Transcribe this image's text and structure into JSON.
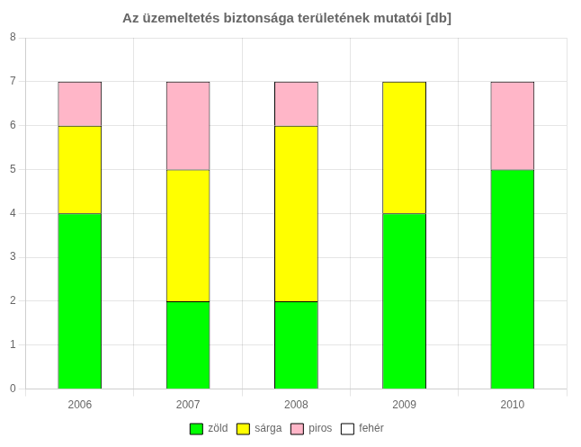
{
  "chart_data": {
    "type": "bar",
    "title": "Az üzemeltetés biztonsága területének mutatói [db]",
    "categories": [
      "2006",
      "2007",
      "2008",
      "2009",
      "2010"
    ],
    "series": [
      {
        "name": "zöld",
        "color": "#00ff00",
        "values": [
          4,
          2,
          2,
          4,
          5
        ]
      },
      {
        "name": "sárga",
        "color": "#ffff00",
        "values": [
          2,
          3,
          4,
          3,
          0
        ]
      },
      {
        "name": "piros",
        "color": "#ffb6c8",
        "values": [
          1,
          2,
          1,
          0,
          2
        ]
      },
      {
        "name": "fehér",
        "color": "#ffffff",
        "values": [
          0,
          0,
          0,
          0,
          0
        ]
      }
    ],
    "stacked": true,
    "ylim": [
      0,
      8
    ],
    "yticks": [
      0,
      1,
      2,
      3,
      4,
      5,
      6,
      7,
      8
    ],
    "grid": true,
    "legend": "bottom"
  }
}
